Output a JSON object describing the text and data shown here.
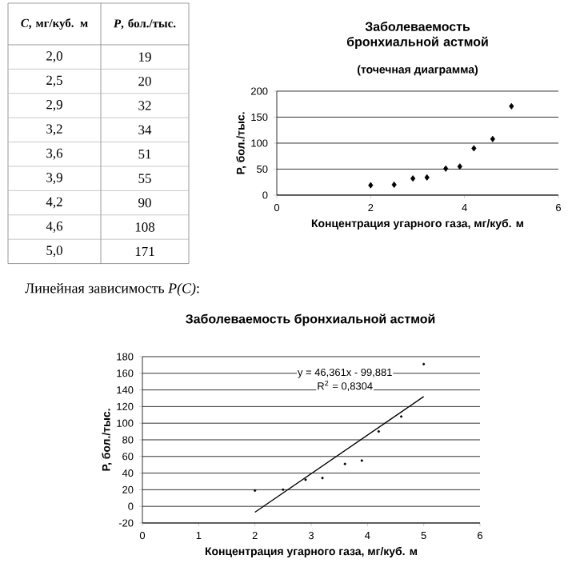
{
  "chart_data": [
    {
      "type": "other",
      "xlabel": "*C*, мг/куб. м",
      "ylabel": "*P*, бол./тыс.",
      "categories": [
        "2,0",
        "2,5",
        "2,9",
        "3,2",
        "3,6",
        "3,9",
        "4,2",
        "4,6",
        "5,0"
      ],
      "values": [
        19,
        20,
        32,
        34,
        51,
        55,
        90,
        108,
        171
      ],
      "data_labels": true
    },
    {
      "type": "scatter",
      "title": "Заболеваемость бронхиальной астмой",
      "subtitle": "(точечная диаграмма)",
      "xlabel": "Концентрация угарного газа, мг/куб. м",
      "ylabel": "P, бол./тыс.",
      "x": [
        2.0,
        2.5,
        2.9,
        3.2,
        3.6,
        3.9,
        4.2,
        4.6,
        5.0
      ],
      "values": [
        19,
        20,
        32,
        34,
        51,
        55,
        90,
        108,
        171
      ],
      "color": "#000000",
      "marker": "diamond",
      "grid": "y",
      "xlim": [
        0,
        6
      ],
      "xticks": [
        0,
        2,
        4,
        6
      ],
      "ylim": [
        0,
        200
      ],
      "yticks": [
        0,
        50,
        100,
        150,
        200
      ]
    },
    {
      "type": "scatter",
      "title": "Заболеваемость бронхиальной астмой",
      "annotations": [
        "Линейная зависимость *P(C)*:",
        "y = 46,361x - 99,881",
        "R$^{2}$ = 0,8304"
      ],
      "xlabel": "Концентрация угарного газа, мг/куб. м",
      "ylabel": "P, бол./тыс.",
      "series": [
        {
          "x": [
            2.0,
            2.5,
            2.9,
            3.2,
            3.6,
            3.9,
            4.2,
            4.6,
            5.0
          ],
          "values": [
            19,
            20,
            32,
            34,
            51,
            55,
            90,
            108,
            171
          ],
          "color": "#000000"
        },
        {
          "type": "line",
          "x": [
            2,
            5
          ],
          "values": [
            -7,
            132
          ],
          "color": "#000000",
          "marker": "none"
        }
      ],
      "marker": "circle",
      "grid": "y",
      "xlim": [
        0,
        6
      ],
      "xticks": [
        0,
        1,
        2,
        3,
        4,
        5,
        6
      ],
      "ylim": [
        -20,
        180
      ],
      "yticks": [
        -20,
        0,
        20,
        40,
        60,
        80,
        100,
        120,
        140,
        160,
        180
      ]
    }
  ]
}
